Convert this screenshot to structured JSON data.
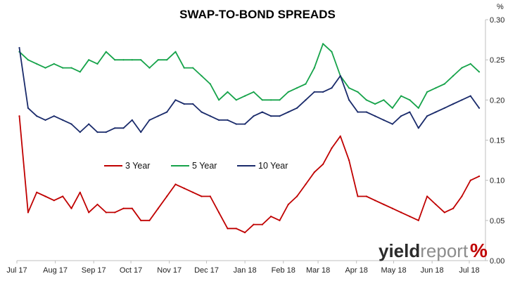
{
  "chart_data": {
    "type": "line",
    "title": "SWAP-TO-BOND SPREADS",
    "ylabel": "%",
    "ylim": [
      0,
      0.3
    ],
    "yticks": [
      "0.00",
      "0.05",
      "0.10",
      "0.15",
      "0.20",
      "0.25",
      "0.30"
    ],
    "x_tick_labels": [
      "Jul 17",
      "Aug 17",
      "Sep 17",
      "Oct 17",
      "Nov 17",
      "Dec 17",
      "Jan 18",
      "Feb 18",
      "Mar 18",
      "Apr 18",
      "May 18",
      "Jun 18",
      "Jul 18"
    ],
    "legend_position": "center",
    "grid": false,
    "x_dates": [
      "2017-07-03",
      "2017-07-10",
      "2017-07-17",
      "2017-07-24",
      "2017-07-31",
      "2017-08-07",
      "2017-08-14",
      "2017-08-21",
      "2017-08-28",
      "2017-09-04",
      "2017-09-11",
      "2017-09-18",
      "2017-09-25",
      "2017-10-02",
      "2017-10-09",
      "2017-10-16",
      "2017-10-23",
      "2017-10-30",
      "2017-11-06",
      "2017-11-13",
      "2017-11-20",
      "2017-11-27",
      "2017-12-04",
      "2017-12-11",
      "2017-12-18",
      "2017-12-25",
      "2018-01-01",
      "2018-01-08",
      "2018-01-15",
      "2018-01-22",
      "2018-01-29",
      "2018-02-05",
      "2018-02-12",
      "2018-02-19",
      "2018-02-26",
      "2018-03-05",
      "2018-03-12",
      "2018-03-19",
      "2018-03-26",
      "2018-04-02",
      "2018-04-09",
      "2018-04-16",
      "2018-04-23",
      "2018-04-30",
      "2018-05-07",
      "2018-05-14",
      "2018-05-21",
      "2018-05-28",
      "2018-06-04",
      "2018-06-11",
      "2018-06-18",
      "2018-06-25",
      "2018-07-02",
      "2018-07-09"
    ],
    "series": [
      {
        "name": "3 Year",
        "color": "#c00000",
        "values": [
          0.18,
          0.06,
          0.085,
          0.08,
          0.075,
          0.08,
          0.065,
          0.085,
          0.06,
          0.07,
          0.06,
          0.06,
          0.065,
          0.065,
          0.05,
          0.05,
          0.065,
          0.08,
          0.095,
          0.09,
          0.085,
          0.08,
          0.08,
          0.06,
          0.04,
          0.04,
          0.035,
          0.045,
          0.045,
          0.055,
          0.05,
          0.07,
          0.08,
          0.095,
          0.11,
          0.12,
          0.14,
          0.155,
          0.125,
          0.08,
          0.08,
          0.075,
          0.07,
          0.065,
          0.06,
          0.055,
          0.05,
          0.08,
          0.07,
          0.06,
          0.065,
          0.08,
          0.1,
          0.105
        ]
      },
      {
        "name": "5 Year",
        "color": "#16a34a",
        "values": [
          0.26,
          0.25,
          0.245,
          0.24,
          0.245,
          0.24,
          0.24,
          0.235,
          0.25,
          0.245,
          0.26,
          0.25,
          0.25,
          0.25,
          0.25,
          0.24,
          0.25,
          0.25,
          0.26,
          0.24,
          0.24,
          0.23,
          0.22,
          0.2,
          0.21,
          0.2,
          0.205,
          0.21,
          0.2,
          0.2,
          0.2,
          0.21,
          0.215,
          0.22,
          0.24,
          0.27,
          0.26,
          0.23,
          0.215,
          0.21,
          0.2,
          0.195,
          0.2,
          0.19,
          0.205,
          0.2,
          0.19,
          0.21,
          0.215,
          0.22,
          0.23,
          0.24,
          0.245,
          0.235
        ]
      },
      {
        "name": "10 Year",
        "color": "#1a2b6b",
        "values": [
          0.265,
          0.19,
          0.18,
          0.175,
          0.18,
          0.175,
          0.17,
          0.16,
          0.17,
          0.16,
          0.16,
          0.165,
          0.165,
          0.175,
          0.16,
          0.175,
          0.18,
          0.185,
          0.2,
          0.195,
          0.195,
          0.185,
          0.18,
          0.175,
          0.175,
          0.17,
          0.17,
          0.18,
          0.185,
          0.18,
          0.18,
          0.185,
          0.19,
          0.2,
          0.21,
          0.21,
          0.215,
          0.23,
          0.2,
          0.185,
          0.185,
          0.18,
          0.175,
          0.17,
          0.18,
          0.185,
          0.165,
          0.18,
          0.185,
          0.19,
          0.195,
          0.2,
          0.205,
          0.19
        ]
      }
    ]
  },
  "watermark": {
    "part1": "yield",
    "part2": "report",
    "part3": "%",
    "color_green": "#16a34a",
    "color_red": "#c00000"
  }
}
